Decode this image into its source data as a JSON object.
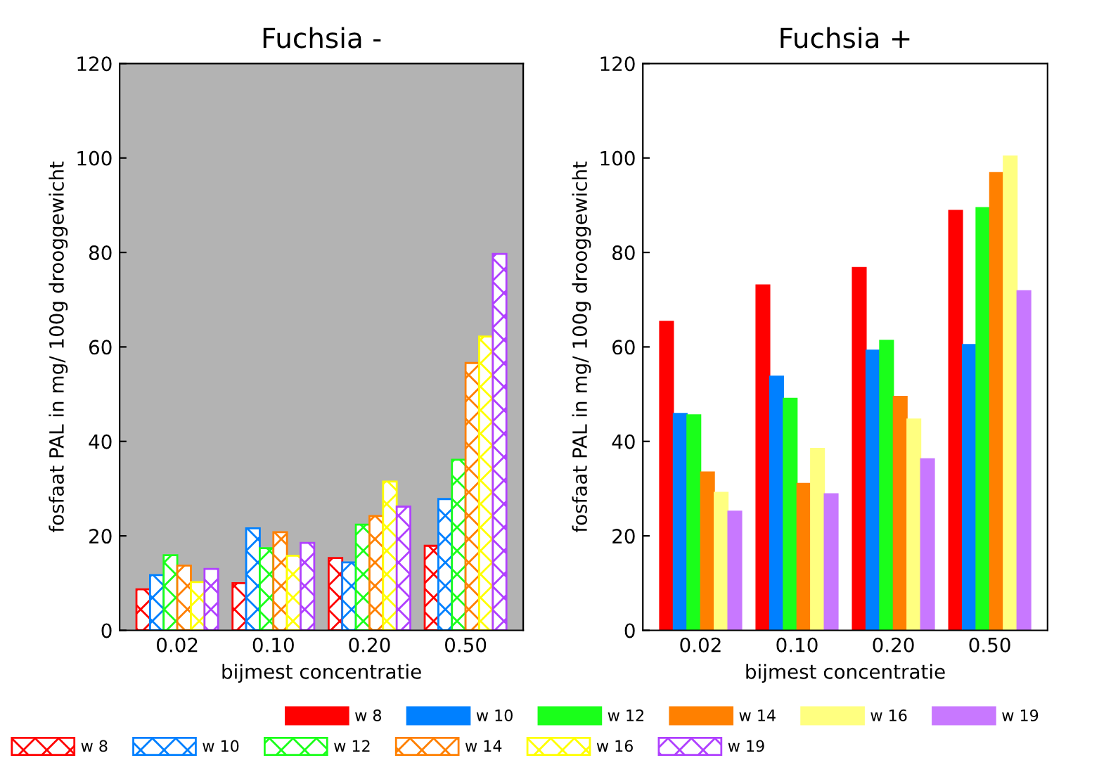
{
  "chart_data": [
    {
      "type": "bar",
      "title": "Fuchsia -",
      "xlabel": "bijmest concentratie",
      "ylabel": "fosfaat PAL in mg/ 100g drooggewicht",
      "categories": [
        "0.02",
        "0.10",
        "0.20",
        "0.50"
      ],
      "ylim": [
        0,
        120
      ],
      "yticks": [
        0,
        20,
        40,
        60,
        80,
        100,
        120
      ],
      "grid": false,
      "legend": "bottom",
      "series": [
        {
          "name": "w 8",
          "color": "#ff0000",
          "values": [
            8.7,
            10.0,
            15.3,
            17.9
          ]
        },
        {
          "name": "w 10",
          "color": "#0080ff",
          "values": [
            11.7,
            21.6,
            14.4,
            27.8
          ]
        },
        {
          "name": "w 12",
          "color": "#1aff1a",
          "values": [
            15.9,
            17.4,
            22.4,
            36.1
          ]
        },
        {
          "name": "w 14",
          "color": "#ff8000",
          "values": [
            13.7,
            20.8,
            24.2,
            56.6
          ]
        },
        {
          "name": "w 16",
          "color": "#ffff00",
          "values": [
            10.2,
            15.8,
            31.5,
            62.2
          ]
        },
        {
          "name": "w 19",
          "color": "#b040ff",
          "values": [
            13.0,
            18.5,
            26.2,
            79.7
          ]
        }
      ]
    },
    {
      "type": "bar",
      "title": "Fuchsia +",
      "xlabel": "bijmest concentratie",
      "ylabel": "fosfaat PAL in mg/ 100g drooggewicht",
      "categories": [
        "0.02",
        "0.10",
        "0.20",
        "0.50"
      ],
      "ylim": [
        0,
        120
      ],
      "yticks": [
        0,
        20,
        40,
        60,
        80,
        100,
        120
      ],
      "grid": false,
      "legend": "bottom",
      "series": [
        {
          "name": "w 8",
          "color": "#ff0000",
          "values": [
            65.4,
            73.1,
            76.8,
            88.9
          ]
        },
        {
          "name": "w 10",
          "color": "#0080ff",
          "values": [
            45.9,
            53.8,
            59.3,
            60.5
          ]
        },
        {
          "name": "w 12",
          "color": "#1aff1a",
          "values": [
            45.6,
            49.1,
            61.4,
            89.5
          ]
        },
        {
          "name": "w 14",
          "color": "#ff8000",
          "values": [
            33.5,
            31.1,
            49.5,
            96.9
          ]
        },
        {
          "name": "w 16",
          "color": "#ffff80",
          "values": [
            29.2,
            38.5,
            44.7,
            100.4
          ]
        },
        {
          "name": "w 19",
          "color": "#c878ff",
          "values": [
            25.2,
            28.9,
            36.3,
            71.9
          ]
        }
      ]
    }
  ]
}
